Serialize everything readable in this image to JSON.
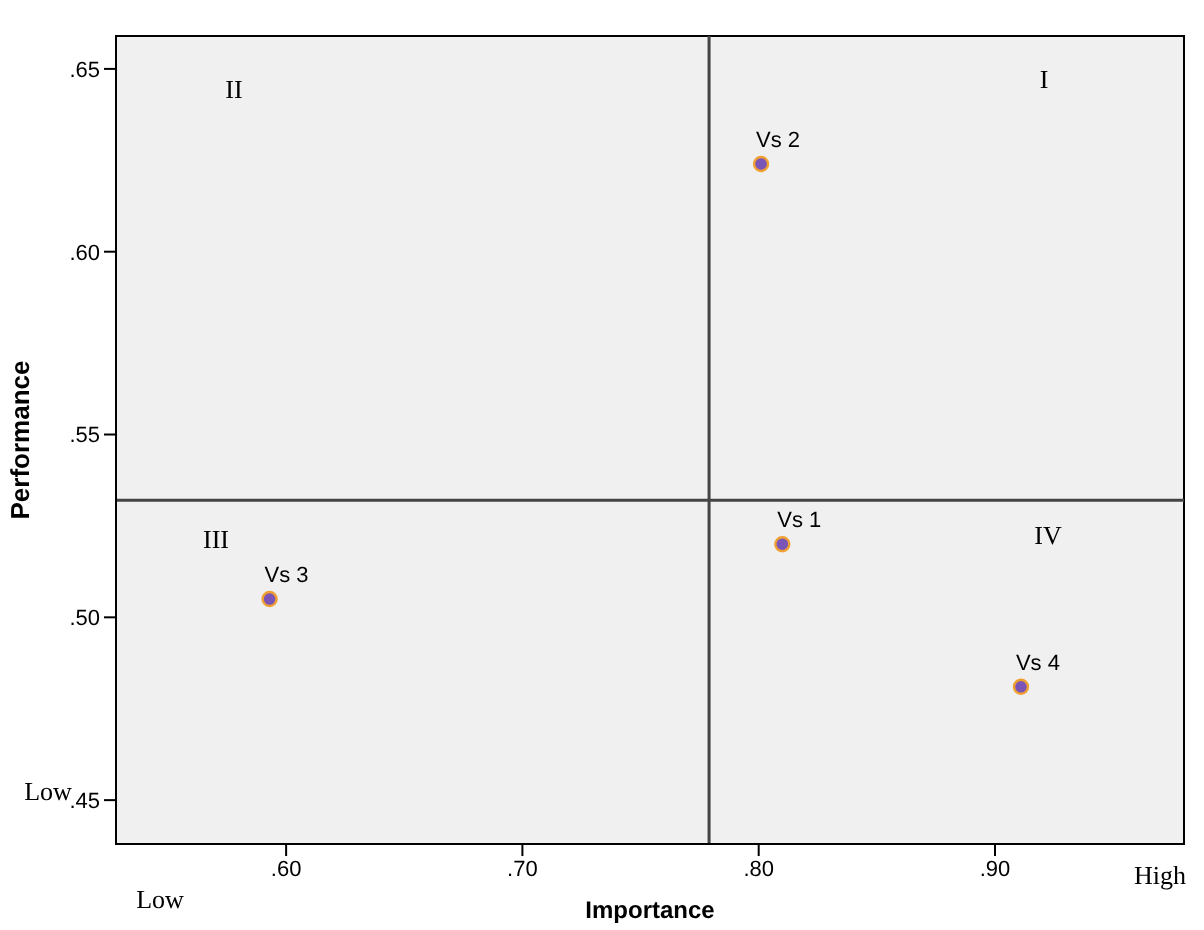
{
  "chart_data": {
    "type": "scatter",
    "xlabel": "Importance",
    "ylabel": "Performance",
    "xlim": [
      0.528,
      0.98
    ],
    "xticks": [
      {
        "value": 0.6,
        "label": ".60"
      },
      {
        "value": 0.7,
        "label": ".70"
      },
      {
        "value": 0.8,
        "label": ".80"
      },
      {
        "value": 0.9,
        "label": ".90"
      }
    ],
    "ylim": [
      0.438,
      0.659
    ],
    "yticks": [
      {
        "value": 0.45,
        "label": ".45"
      },
      {
        "value": 0.5,
        "label": ".50"
      },
      {
        "value": 0.55,
        "label": ".55"
      },
      {
        "value": 0.6,
        "label": ".60"
      },
      {
        "value": 0.65,
        "label": ".65"
      }
    ],
    "series": [
      {
        "name": "Vs 1",
        "color": "#7b55b5",
        "x": [
          0.81
        ],
        "values": [
          0.52
        ]
      },
      {
        "name": "Vs 2",
        "color": "#7b55b5",
        "x": [
          0.801
        ],
        "values": [
          0.624
        ]
      },
      {
        "name": "Vs 3",
        "color": "#7b55b5",
        "x": [
          0.593
        ],
        "values": [
          0.505
        ]
      },
      {
        "name": "Vs 4",
        "color": "#7b55b5",
        "x": [
          0.911
        ],
        "values": [
          0.481
        ]
      }
    ],
    "ref_lines": [
      {
        "axis": "x",
        "value": 0.779,
        "color": "#444444"
      },
      {
        "axis": "y",
        "value": 0.532,
        "color": "#444444"
      }
    ],
    "annotations": [
      "II",
      "I",
      "III",
      "IV",
      "Low",
      "Low",
      "High"
    ],
    "marker": "circle"
  }
}
